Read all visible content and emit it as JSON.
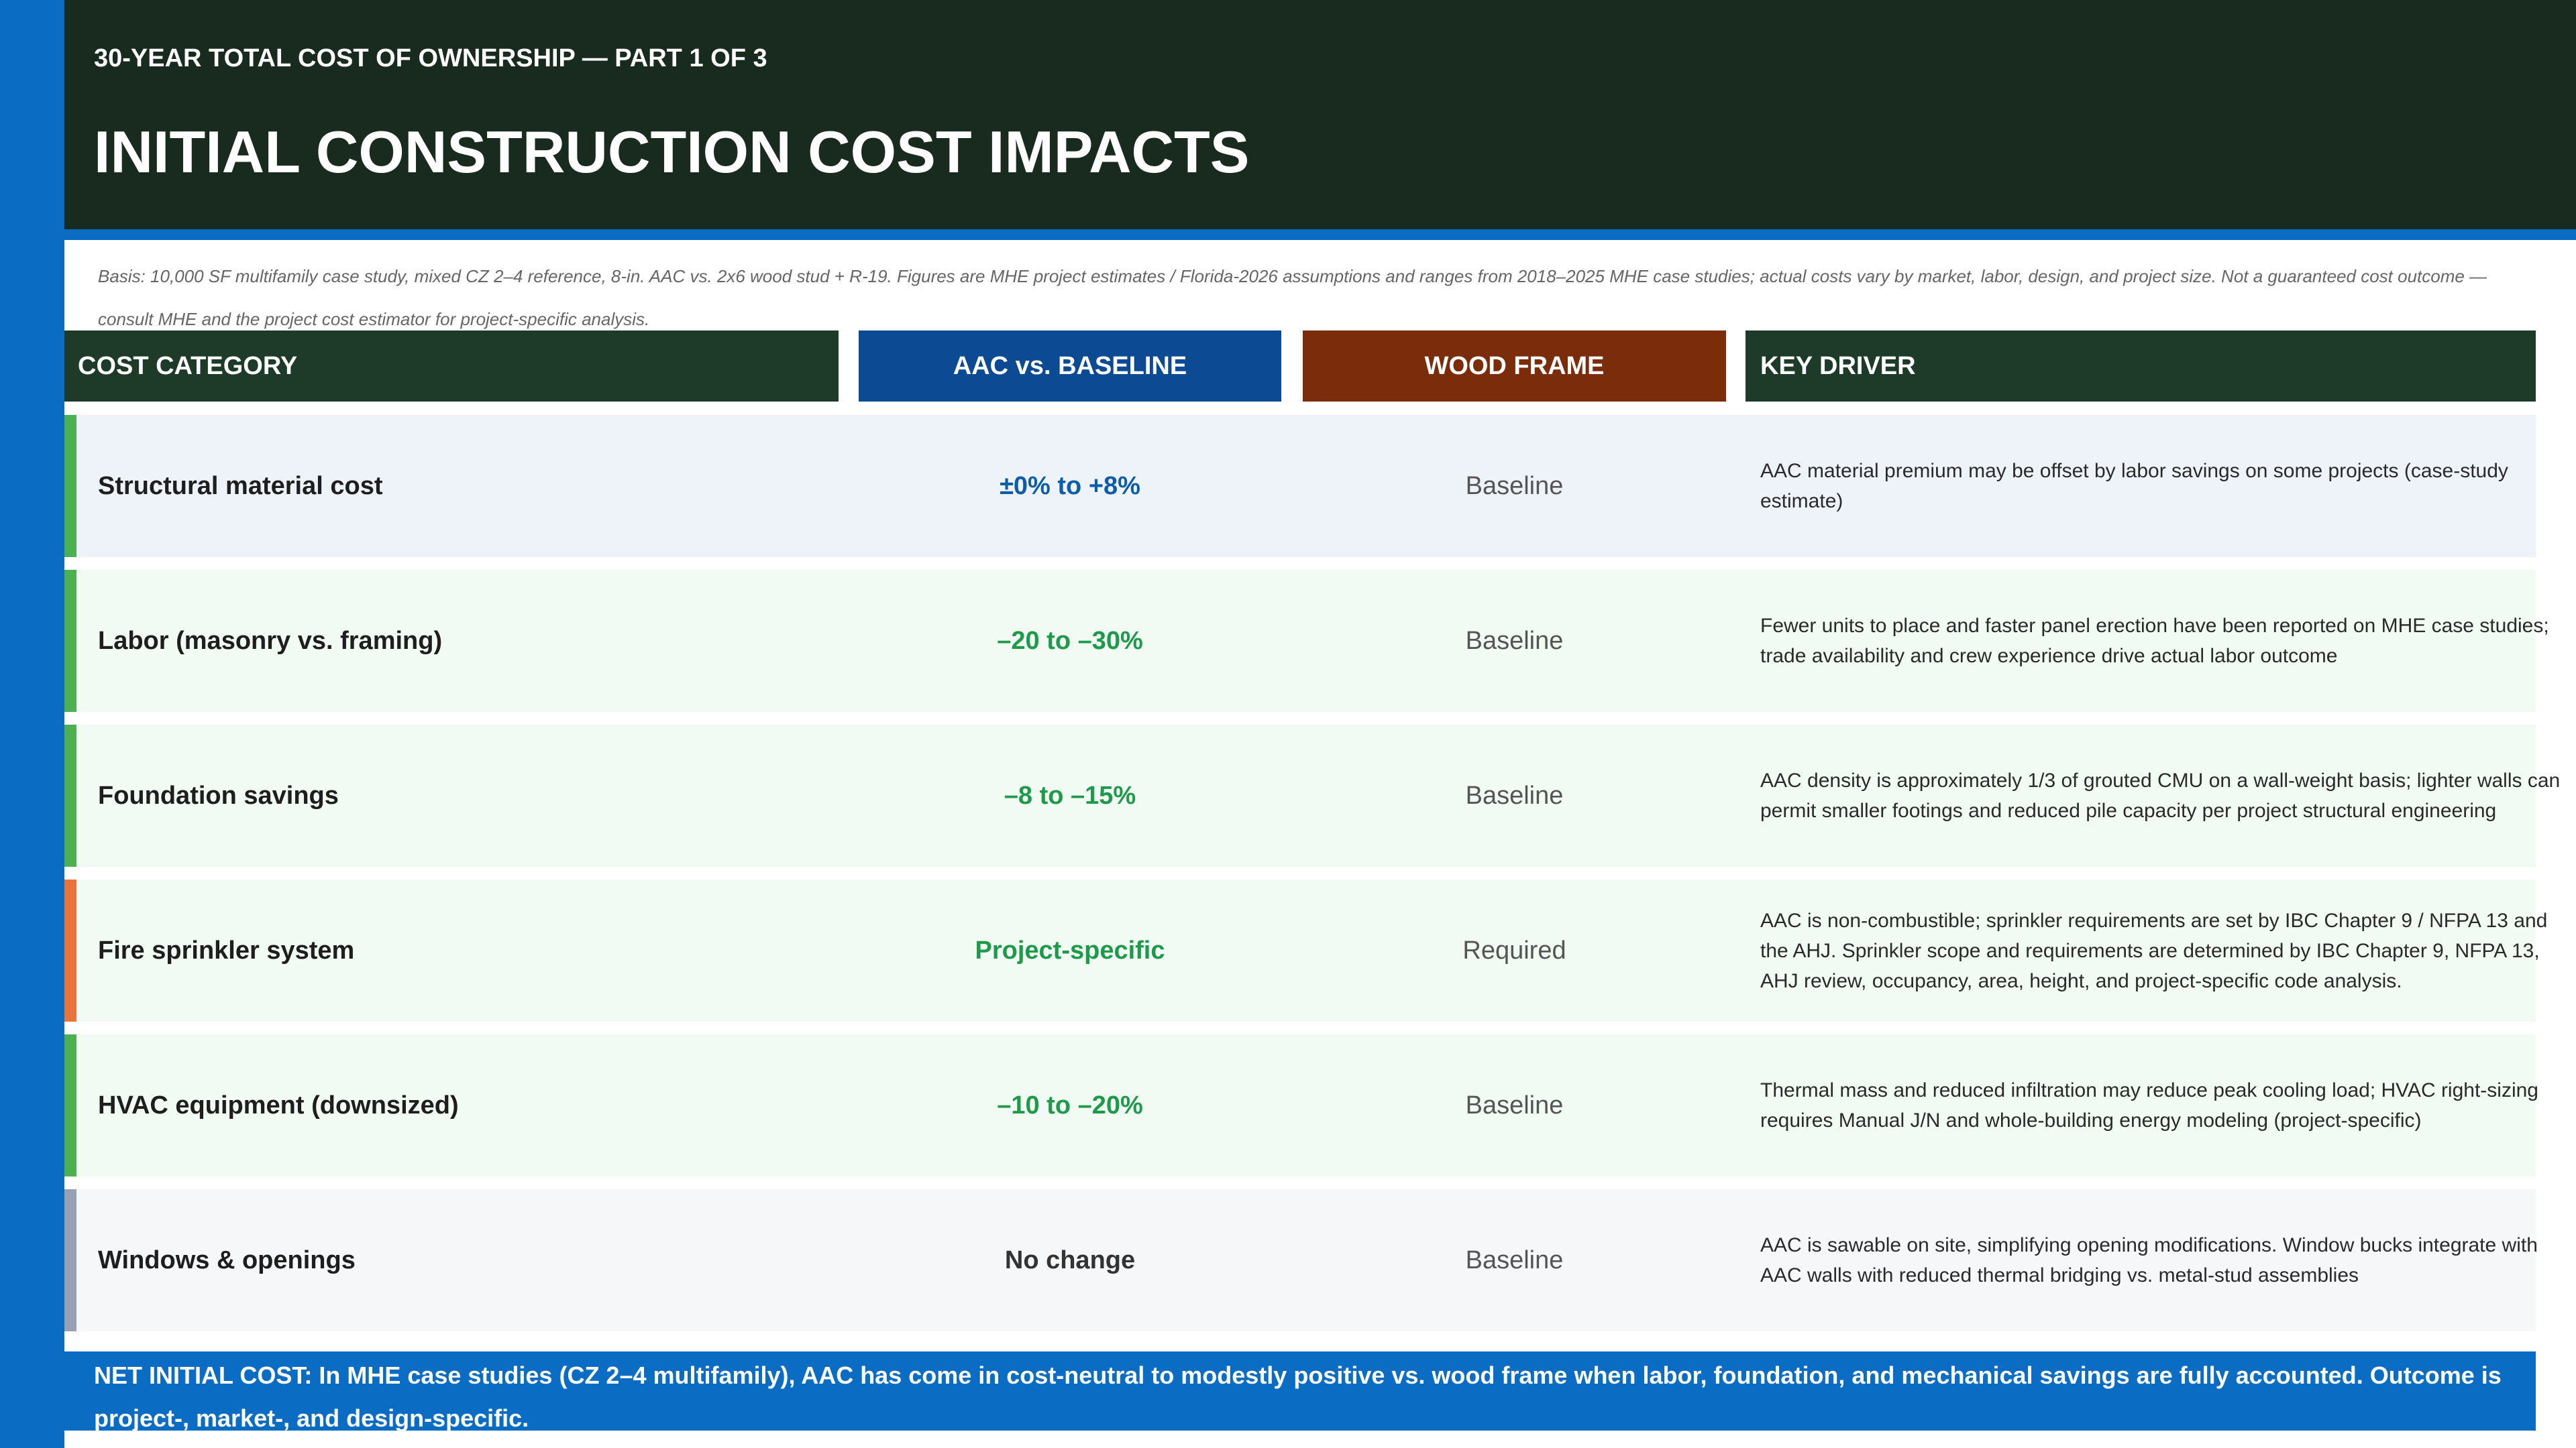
{
  "header": {
    "kicker": "30-YEAR TOTAL COST OF OWNERSHIP  —  PART 1 OF 3",
    "title": "INITIAL CONSTRUCTION COST IMPACTS"
  },
  "basis_note": "Basis: 10,000 SF multifamily case study, mixed CZ 2–4 reference, 8-in. AAC vs. 2x6 wood stud + R-19. Figures are MHE project estimates / Florida-2026 assumptions and ranges from 2018–2025 MHE case studies; actual costs vary by market, labor, design, and project size. Not a guaranteed cost outcome — consult MHE and the project cost estimator for project-specific analysis.",
  "table": {
    "headers": {
      "category": "COST CATEGORY",
      "aac": "AAC vs. BASELINE",
      "wood": "WOOD FRAME",
      "driver": "KEY DRIVER"
    },
    "rows": [
      {
        "category": "Structural material cost",
        "aac": "±0% to +8%",
        "wood": "Baseline",
        "driver": "AAC material premium may be offset by labor savings on some projects (case-study estimate)",
        "accent": "#4caf50",
        "aac_color": "#0d5da8",
        "bg": "#eef3f9"
      },
      {
        "category": "Labor (masonry vs. framing)",
        "aac": "–20 to –30%",
        "wood": "Baseline",
        "driver": "Fewer units to place and faster panel erection have been reported on MHE case studies; trade availability and crew experience drive actual labor outcome",
        "accent": "#4caf50",
        "aac_color": "#1e9a4a",
        "bg": "#f1fbf3"
      },
      {
        "category": "Foundation savings",
        "aac": "–8 to –15%",
        "wood": "Baseline",
        "driver": "AAC density is approximately 1/3 of grouted CMU on a wall-weight basis; lighter walls can permit smaller footings and reduced pile capacity per project structural engineering",
        "accent": "#4caf50",
        "aac_color": "#1e9a4a",
        "bg": "#f1fbf3"
      },
      {
        "category": "Fire sprinkler system",
        "aac": "Project-specific",
        "wood": "Required",
        "driver": "AAC is non-combustible; sprinkler requirements are set by IBC Chapter 9 / NFPA 13 and the AHJ. Sprinkler scope and requirements are determined by IBC Chapter 9, NFPA 13, AHJ review, occupancy, area, height, and project-specific code analysis.",
        "accent": "#e8743b",
        "aac_color": "#1e9a4a",
        "bg": "#f1fbf3"
      },
      {
        "category": "HVAC equipment (downsized)",
        "aac": "–10 to –20%",
        "wood": "Baseline",
        "driver": "Thermal mass and reduced infiltration may reduce peak cooling load; HVAC right-sizing requires Manual J/N and whole-building energy modeling (project-specific)",
        "accent": "#4caf50",
        "aac_color": "#1e9a4a",
        "bg": "#f1fbf3"
      },
      {
        "category": "Windows & openings",
        "aac": "No change",
        "wood": "Baseline",
        "driver": "AAC is sawable on site, simplifying opening modifications. Window bucks integrate with AAC walls with reduced thermal bridging vs. metal-stud assemblies",
        "accent": "#9aa0b4",
        "aac_color": "#333333",
        "bg": "#f6f7f8"
      }
    ]
  },
  "footer": "NET INITIAL COST: In MHE case studies (CZ 2–4 multifamily), AAC has come in cost-neutral to modestly positive vs. wood frame when labor, foundation, and mechanical savings are fully accounted. Outcome is project-, market-, and design-specific.",
  "colors": {
    "header_bg": "#192a1f",
    "brand_blue": "#0a6cc2",
    "aac_header": "#0d4a94",
    "wood_header": "#7a2c0b",
    "category_header": "#1e3a28"
  }
}
